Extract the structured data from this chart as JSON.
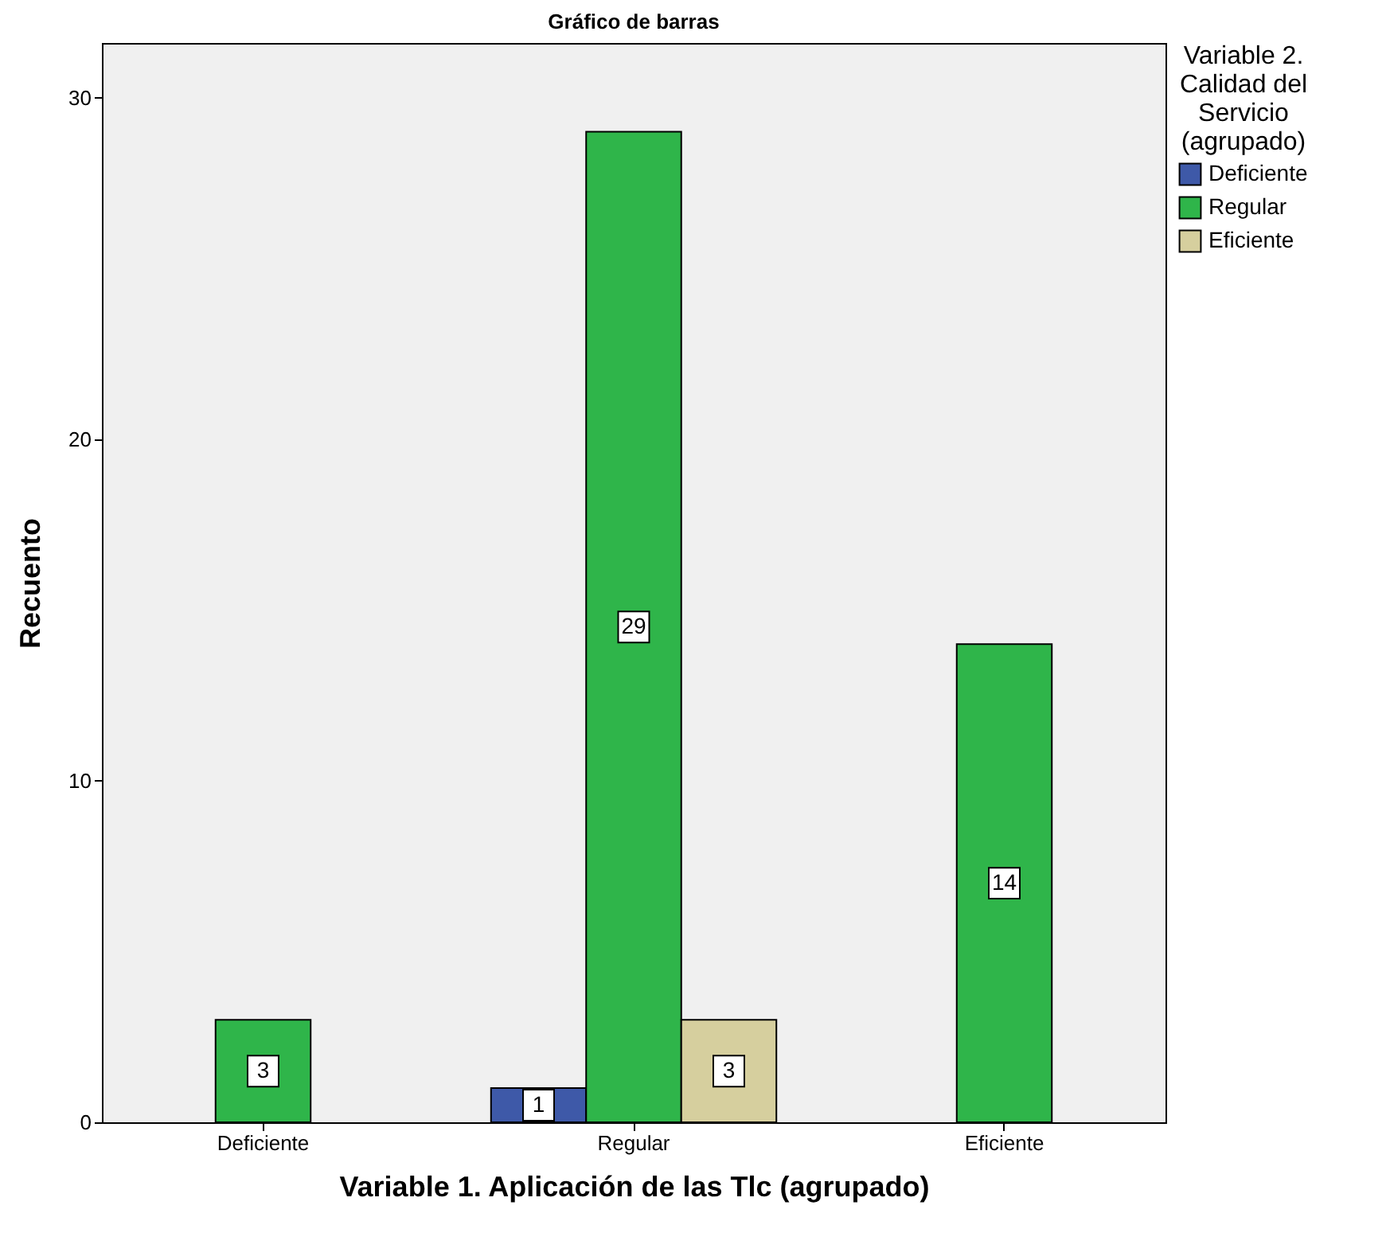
{
  "chart_data": {
    "type": "bar",
    "title": "Gráfico de barras",
    "xlabel": "Variable 1. Aplicación de las Tlc (agrupado)",
    "ylabel": "Recuento",
    "legend_title": "Variable 2. Calidad del Servicio (agrupado)",
    "categories": [
      "Deficiente",
      "Regular",
      "Eficiente"
    ],
    "series": [
      {
        "name": "Deficiente",
        "color": "#3e59a8",
        "values": [
          null,
          1,
          null
        ]
      },
      {
        "name": "Regular",
        "color": "#2fb54a",
        "values": [
          3,
          29,
          14
        ]
      },
      {
        "name": "Eficiente",
        "color": "#d6cf9e",
        "values": [
          null,
          3,
          null
        ]
      }
    ],
    "ylim": [
      0,
      31.6
    ],
    "yticks": [
      0,
      10,
      20,
      30
    ],
    "grid": false,
    "legend": "right",
    "data_labels": true
  }
}
